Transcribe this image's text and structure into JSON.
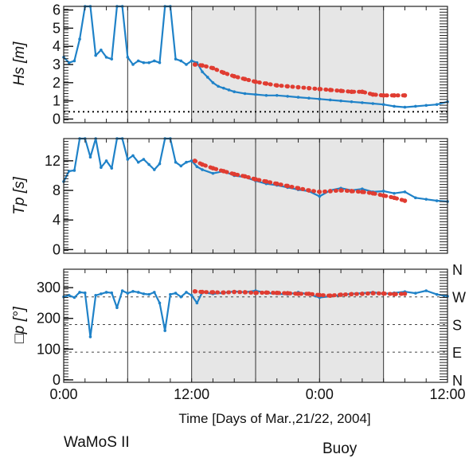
{
  "chart_data": [
    {
      "type": "line",
      "ylabel": "Hs [m]",
      "yticks": [
        "0",
        "1",
        "2",
        "3",
        "4",
        "5",
        "6"
      ],
      "ylim": [
        -0.2,
        6.2
      ],
      "reference_line": 0.4,
      "series": [
        {
          "name": "WaMoS II",
          "color": "#1f82c8",
          "x": [
            0,
            0.5,
            1,
            1.5,
            2,
            2.5,
            3,
            3.5,
            4,
            4.5,
            5,
            5.5,
            6,
            6.5,
            7,
            7.5,
            8,
            8.5,
            9,
            9.5,
            10,
            10.5,
            11,
            11.5,
            12,
            12.5,
            13,
            13.5,
            14,
            14.5,
            15,
            15.5,
            16,
            17,
            18,
            19,
            20,
            21,
            22,
            23,
            24,
            25,
            26,
            27,
            28,
            29,
            30,
            31,
            32,
            33,
            34,
            35,
            36
          ],
          "y": [
            3.4,
            3.1,
            3.2,
            4.4,
            6.5,
            6.5,
            3.5,
            3.8,
            3.4,
            3.3,
            6.5,
            6.5,
            3.4,
            3.0,
            3.2,
            3.1,
            3.1,
            3.2,
            3.1,
            6.5,
            6.5,
            3.3,
            3.2,
            3.0,
            3.2,
            3.1,
            2.6,
            2.3,
            2.0,
            1.8,
            1.7,
            1.6,
            1.5,
            1.4,
            1.35,
            1.3,
            1.3,
            1.25,
            1.2,
            1.15,
            1.1,
            1.05,
            1.0,
            0.95,
            0.9,
            0.85,
            0.8,
            0.7,
            0.65,
            0.7,
            0.75,
            0.8,
            0.95
          ]
        },
        {
          "name": "Buoy",
          "color": "#e03c31",
          "x": [
            12.3,
            13,
            14,
            15,
            16,
            17,
            18,
            19,
            20,
            21,
            22,
            23,
            24,
            25,
            26,
            27,
            28,
            29,
            30,
            31,
            32
          ],
          "y": [
            3.0,
            2.95,
            2.8,
            2.55,
            2.35,
            2.2,
            2.05,
            1.95,
            1.85,
            1.8,
            1.75,
            1.7,
            1.65,
            1.6,
            1.55,
            1.5,
            1.5,
            1.35,
            1.3,
            1.3,
            1.3
          ]
        }
      ]
    },
    {
      "type": "line",
      "ylabel": "Tp [s]",
      "yticks": [
        "0",
        "4",
        "8",
        "12"
      ],
      "ylim": [
        -0.5,
        15
      ],
      "series": [
        {
          "name": "WaMoS II",
          "color": "#1f82c8",
          "x": [
            0,
            0.5,
            1,
            1.5,
            2,
            2.5,
            3,
            3.5,
            4,
            4.5,
            5,
            5.5,
            6,
            6.5,
            7,
            7.5,
            8,
            8.5,
            9,
            9.5,
            10,
            10.5,
            11,
            11.5,
            12,
            12.5,
            13,
            14,
            15,
            16,
            17,
            18,
            19,
            20,
            21,
            22,
            23,
            24,
            25,
            26,
            27,
            28,
            29,
            30,
            31,
            32,
            33,
            34,
            35,
            36
          ],
          "y": [
            9.2,
            10.6,
            10.7,
            16,
            16,
            12.5,
            16,
            11.1,
            12.0,
            11.0,
            16,
            16,
            12.2,
            12.7,
            11.8,
            12.2,
            11.5,
            10.8,
            11.6,
            16,
            16,
            11.8,
            11.3,
            11.8,
            12.0,
            11.2,
            10.8,
            10.3,
            10.6,
            10.0,
            9.8,
            9.3,
            8.9,
            8.7,
            8.4,
            8.1,
            7.9,
            7.2,
            8.0,
            8.3,
            8.0,
            8.2,
            7.8,
            7.9,
            7.6,
            7.8,
            7.0,
            6.8,
            6.6,
            6.5
          ]
        },
        {
          "name": "Buoy",
          "color": "#e03c31",
          "x": [
            12.3,
            13,
            14,
            15,
            16,
            17,
            18,
            19,
            20,
            21,
            22,
            23,
            24,
            25,
            26,
            27,
            28,
            29,
            30,
            31,
            32
          ],
          "y": [
            12.0,
            11.5,
            11.0,
            10.6,
            10.2,
            9.9,
            9.5,
            9.2,
            8.9,
            8.6,
            8.3,
            8.0,
            7.8,
            7.9,
            8.0,
            7.9,
            7.8,
            7.6,
            7.3,
            7.0,
            6.6
          ]
        }
      ]
    },
    {
      "type": "line",
      "ylabel": "□p [°]",
      "yticks": [
        "0",
        "100",
        "200",
        "300"
      ],
      "ylim": [
        -8,
        360
      ],
      "right_ticks": [
        "N",
        "W",
        "S",
        "E",
        "N"
      ],
      "series": [
        {
          "name": "WaMoS II",
          "color": "#1f82c8",
          "x": [
            0,
            0.5,
            1,
            1.5,
            2,
            2.5,
            3,
            3.5,
            4,
            4.5,
            5,
            5.5,
            6,
            6.5,
            7,
            7.5,
            8,
            8.5,
            9,
            9.5,
            10,
            10.5,
            11,
            11.5,
            12,
            12.5,
            13,
            14,
            15,
            16,
            17,
            18,
            19,
            20,
            21,
            22,
            23,
            24,
            25,
            26,
            27,
            28,
            29,
            30,
            31,
            32,
            33,
            34,
            35,
            36
          ],
          "y": [
            270,
            275,
            268,
            285,
            283,
            140,
            275,
            280,
            285,
            283,
            235,
            290,
            282,
            288,
            285,
            280,
            278,
            285,
            250,
            160,
            278,
            282,
            270,
            285,
            275,
            250,
            285,
            280,
            283,
            288,
            285,
            290,
            283,
            280,
            278,
            285,
            278,
            268,
            272,
            276,
            280,
            282,
            285,
            280,
            283,
            287,
            282,
            290,
            278,
            272
          ]
        },
        {
          "name": "Buoy",
          "color": "#e03c31",
          "x": [
            12.3,
            13,
            14,
            15,
            16,
            17,
            18,
            19,
            20,
            21,
            22,
            23,
            24,
            25,
            26,
            27,
            28,
            29,
            30,
            31,
            32
          ],
          "y": [
            288,
            286,
            285,
            284,
            286,
            285,
            283,
            284,
            283,
            282,
            280,
            280,
            276,
            274,
            277,
            279,
            280,
            282,
            281,
            279,
            280
          ]
        }
      ]
    }
  ],
  "xaxis": {
    "label": "Time [Days of Mar.,21/22, 2004]",
    "ticks": [
      "0:00",
      "12:00",
      "0:00",
      "12:00"
    ],
    "tick_hours": [
      0,
      12,
      24,
      36
    ],
    "xlim": [
      0,
      36
    ],
    "vertical_lines": [
      6,
      12,
      18,
      24,
      30
    ],
    "buoy_shaded_span": [
      12,
      30
    ]
  },
  "source_labels": {
    "wamos": "WaMoS II",
    "buoy": "Buoy"
  },
  "colors": {
    "wamos": "#1f82c8",
    "buoy": "#e03c31",
    "shade": "#e6e6e6"
  }
}
